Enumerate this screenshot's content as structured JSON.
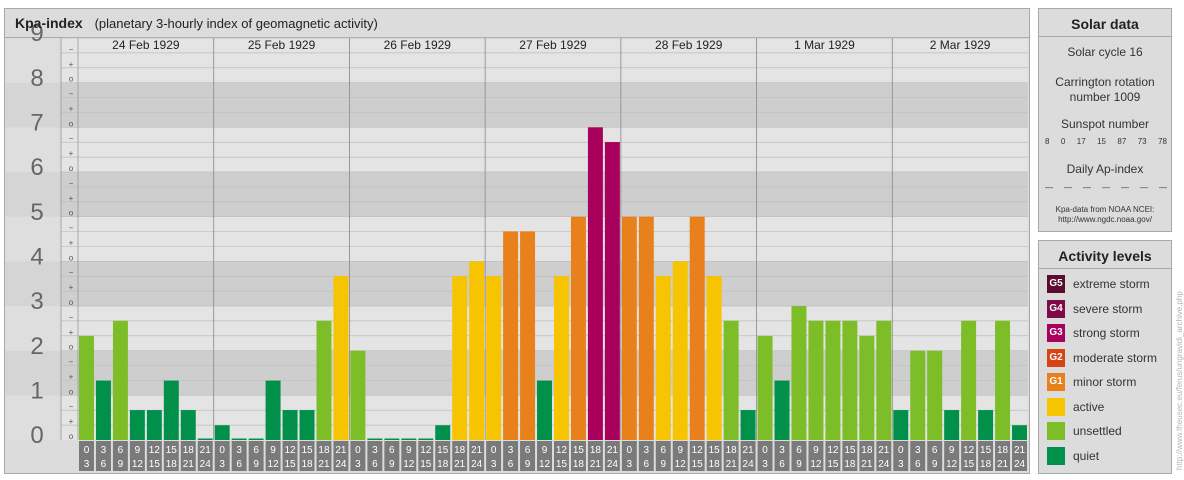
{
  "header": {
    "title": "Kpa-index",
    "subtitle": "(planetary 3-hourly index of geomagnetic activity)"
  },
  "chart_data": {
    "type": "bar",
    "title": "Kpa-index",
    "subtitle": "(planetary 3-hourly index of geomagnetic activity)",
    "ylim": [
      0,
      9
    ],
    "y_ticks": [
      "0",
      "1",
      "2",
      "3",
      "4",
      "5",
      "6",
      "7",
      "8",
      "9"
    ],
    "minor_tick_labels": [
      "o",
      "+",
      "−"
    ],
    "days": [
      "24 Feb 1929",
      "25 Feb 1929",
      "26 Feb 1929",
      "27 Feb 1929",
      "28 Feb 1929",
      "1 Mar 1929",
      "2 Mar 1929"
    ],
    "interval_start": [
      "0",
      "3",
      "6",
      "9",
      "12",
      "15",
      "18",
      "21"
    ],
    "interval_end": [
      "3",
      "6",
      "9",
      "12",
      "15",
      "18",
      "21",
      "24"
    ],
    "values": [
      [
        2.33,
        1.33,
        2.67,
        0.67,
        0.67,
        1.33,
        0.67,
        0.0
      ],
      [
        0.33,
        0.0,
        0.0,
        1.33,
        0.67,
        0.67,
        2.67,
        3.67
      ],
      [
        2.0,
        0.0,
        0.0,
        0.0,
        0.0,
        0.33,
        3.67,
        4.0
      ],
      [
        3.67,
        4.67,
        4.67,
        1.33,
        3.67,
        5.0,
        7.0,
        6.67
      ],
      [
        5.0,
        5.0,
        3.67,
        4.0,
        5.0,
        3.67,
        2.67,
        0.67
      ],
      [
        2.33,
        1.33,
        3.0,
        2.67,
        2.67,
        2.67,
        2.33,
        2.67
      ],
      [
        0.67,
        2.0,
        2.0,
        0.67,
        2.67,
        0.67,
        2.67,
        0.33
      ]
    ],
    "grid": true
  },
  "solar": {
    "title": "Solar data",
    "cycle": "Solar cycle 16",
    "carrington_line1": "Carrington rotation",
    "carrington_line2": "number 1009",
    "sunspot_label": "Sunspot number",
    "sunspot_values": [
      "8",
      "0",
      "17",
      "15",
      "87",
      "73",
      "78"
    ],
    "ap_label": "Daily Ap-index",
    "ap_values": [
      "—",
      "—",
      "—",
      "—",
      "—",
      "—",
      "—"
    ],
    "source_line1": "Kpa-data from NOAA NCEI:",
    "source_line2": "http://www.ngdc.noaa.gov/"
  },
  "activity": {
    "title": "Activity levels",
    "levels": [
      {
        "code": "G5",
        "label": "extreme storm",
        "color": "#5a0d2e"
      },
      {
        "code": "G4",
        "label": "severe storm",
        "color": "#7e0b47"
      },
      {
        "code": "G3",
        "label": "strong storm",
        "color": "#a8005c"
      },
      {
        "code": "G2",
        "label": "moderate storm",
        "color": "#d84313"
      },
      {
        "code": "G1",
        "label": "minor storm",
        "color": "#e8801c"
      },
      {
        "code": "",
        "label": "active",
        "color": "#f6c400"
      },
      {
        "code": "",
        "label": "unsettled",
        "color": "#7cbd28"
      },
      {
        "code": "",
        "label": "quiet",
        "color": "#00904a"
      }
    ]
  },
  "watermark": "http://www.theusec.eu/ferus/ungravidi_archive.php"
}
